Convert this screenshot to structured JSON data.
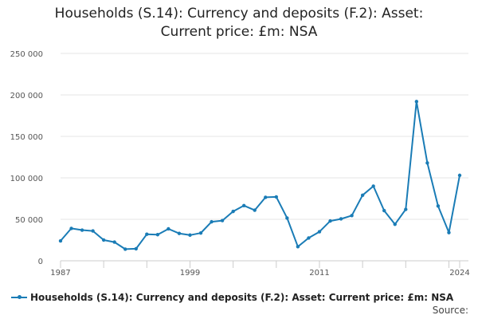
{
  "title_line1": "Households (S.14): Currency and deposits (F.2): Asset:",
  "title_line2": "Current price: £m: NSA",
  "source_label": "Source:",
  "colors": {
    "series": "#1a7cb6",
    "grid": "#e6e6e6",
    "axis": "#cccccc"
  },
  "chart_data": {
    "type": "line",
    "title": "Households (S.14): Currency and deposits (F.2): Asset: Current price: £m: NSA",
    "xlabel": "",
    "ylabel": "",
    "xlim": [
      1987,
      2024
    ],
    "ylim": [
      0,
      250000
    ],
    "x_ticks": [
      1987,
      1999,
      2011,
      2024
    ],
    "x_tick_labels": [
      "1987",
      "1999",
      "2011",
      "2024"
    ],
    "y_ticks": [
      0,
      50000,
      100000,
      150000,
      200000,
      250000
    ],
    "y_tick_labels": [
      "0",
      "50 000",
      "100 000",
      "150 000",
      "200 000",
      "250 000"
    ],
    "grid": true,
    "legend_position": "bottom",
    "x": [
      1987,
      1988,
      1989,
      1990,
      1991,
      1992,
      1993,
      1994,
      1995,
      1996,
      1997,
      1998,
      1999,
      2000,
      2001,
      2002,
      2003,
      2004,
      2005,
      2006,
      2007,
      2008,
      2009,
      2010,
      2011,
      2012,
      2013,
      2014,
      2015,
      2016,
      2017,
      2018,
      2019,
      2020,
      2021,
      2022,
      2023,
      2024
    ],
    "series": [
      {
        "name": "Households (S.14): Currency and deposits (F.2): Asset: Current price: £m: NSA",
        "values": [
          24000,
          39000,
          37000,
          36000,
          25000,
          22500,
          14000,
          14500,
          32000,
          31500,
          38500,
          33000,
          31000,
          33500,
          47000,
          48500,
          59500,
          66500,
          61000,
          76500,
          77000,
          51500,
          17000,
          27500,
          35000,
          48000,
          50500,
          54500,
          79000,
          90000,
          60500,
          44000,
          62000,
          192000,
          118000,
          66000,
          34000,
          103000
        ]
      }
    ]
  }
}
